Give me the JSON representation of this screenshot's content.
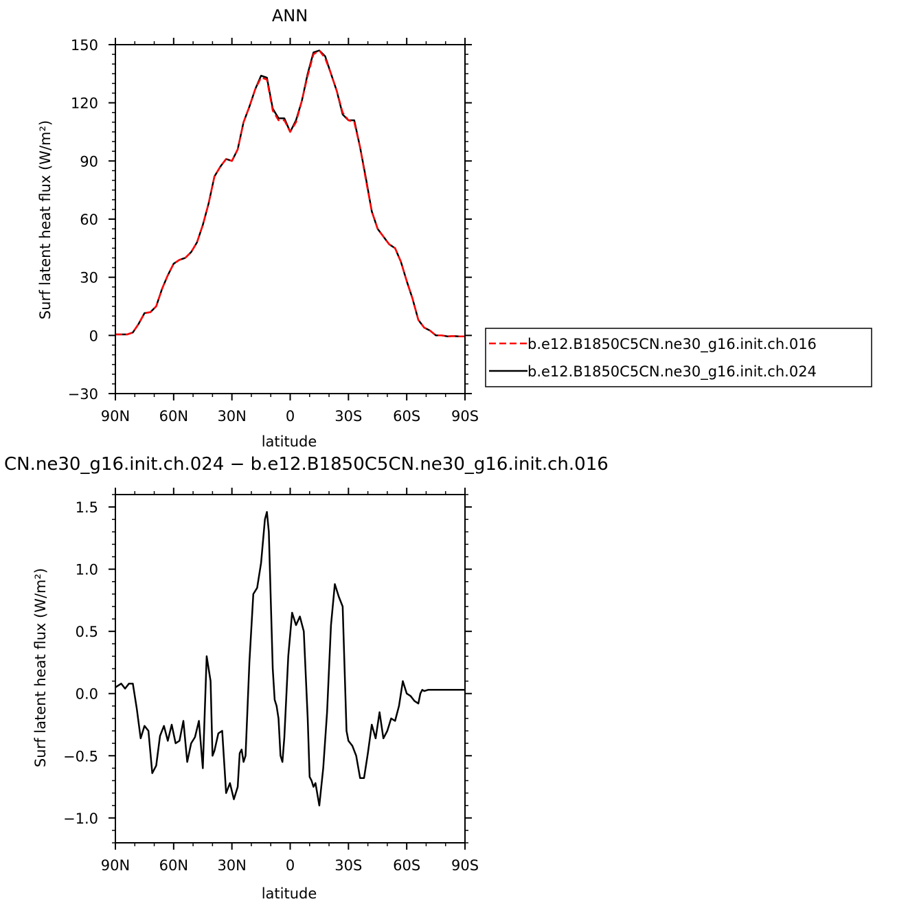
{
  "chart_data": [
    {
      "type": "line",
      "title": "ANN",
      "xlabel": "latitude",
      "ylabel": "Surf latent heat flux (W/m²)",
      "xlim": [
        90,
        -90
      ],
      "ylim": [
        -30,
        150
      ],
      "xticks": [
        90,
        60,
        30,
        0,
        -30,
        -60,
        -90
      ],
      "xticklabels": [
        "90N",
        "60N",
        "30N",
        "0",
        "30S",
        "60S",
        "90S"
      ],
      "yticks": [
        -30,
        0,
        30,
        60,
        90,
        120,
        150
      ],
      "yticklabels": [
        "−30",
        "0",
        "30",
        "60",
        "90",
        "120",
        "150"
      ],
      "legend_position": "right",
      "series": [
        {
          "name": "b.e12.B1850C5CN.ne30_g16.init.ch.016",
          "color": "#ff0000",
          "dash": "dashed",
          "x": [
            90,
            84,
            81,
            78,
            75,
            72,
            69,
            66,
            63,
            60,
            57,
            54,
            51,
            48,
            45,
            42,
            39,
            36,
            33,
            30,
            27,
            24,
            21,
            18,
            15,
            12,
            9,
            6,
            3,
            0,
            -3,
            -6,
            -9,
            -12,
            -15,
            -18,
            -21,
            -24,
            -27,
            -30,
            -33,
            -36,
            -39,
            -42,
            -45,
            -48,
            -51,
            -54,
            -57,
            -60,
            -63,
            -66,
            -69,
            -72,
            -75,
            -78,
            -81,
            -84,
            -87,
            -90
          ],
          "y": [
            0.5,
            0.5,
            1.5,
            6,
            11.5,
            12,
            15,
            24,
            31,
            37,
            39,
            40,
            43,
            48,
            57,
            68,
            82,
            87,
            91,
            90,
            96,
            110,
            118,
            127,
            133,
            132,
            116,
            111,
            111,
            105,
            110,
            121,
            134,
            145,
            147,
            143,
            135,
            126,
            115,
            111,
            110,
            97,
            80,
            64,
            55,
            51,
            47,
            45,
            38,
            28,
            19,
            8,
            4,
            2.5,
            0,
            0,
            -0.5,
            -0.3,
            -0.5,
            -0.5
          ]
        },
        {
          "name": "b.e12.B1850C5CN.ne30_g16.init.ch.024",
          "color": "#000000",
          "dash": "solid",
          "x": [
            90,
            84,
            81,
            78,
            75,
            72,
            69,
            66,
            63,
            60,
            57,
            54,
            51,
            48,
            45,
            42,
            39,
            36,
            33,
            30,
            27,
            24,
            21,
            18,
            15,
            12,
            9,
            6,
            3,
            0,
            -3,
            -6,
            -9,
            -12,
            -15,
            -18,
            -21,
            -24,
            -27,
            -30,
            -33,
            -36,
            -39,
            -42,
            -45,
            -48,
            -51,
            -54,
            -57,
            -60,
            -63,
            -66,
            -69,
            -72,
            -75,
            -78,
            -81,
            -84,
            -87,
            -90
          ],
          "y": [
            0.5,
            0.5,
            1.5,
            6,
            11.5,
            12,
            15,
            24,
            31,
            37,
            39,
            40,
            43,
            48,
            57,
            68,
            82,
            87,
            91,
            90,
            96,
            110,
            118,
            127,
            134,
            133,
            117,
            112,
            112,
            105,
            111,
            121,
            135,
            146,
            147,
            144,
            135,
            126,
            114,
            111,
            111,
            97,
            81,
            64,
            55,
            51,
            47,
            45,
            38,
            28,
            19,
            8,
            4,
            2.5,
            0,
            0,
            -0.5,
            -0.3,
            -0.5,
            -0.5
          ]
        }
      ]
    },
    {
      "type": "line",
      "title": "CN.ne30_g16.init.ch.024 − b.e12.B1850C5CN.ne30_g16.init.ch.016",
      "xlabel": "latitude",
      "ylabel": "Surf latent heat flux (W/m²)",
      "xlim": [
        90,
        -90
      ],
      "ylim": [
        -1.2,
        1.6
      ],
      "xticks": [
        90,
        60,
        30,
        0,
        -30,
        -60,
        -90
      ],
      "xticklabels": [
        "90N",
        "60N",
        "30N",
        "0",
        "30S",
        "60S",
        "90S"
      ],
      "yticks": [
        -1.0,
        -0.5,
        0.0,
        0.5,
        1.0,
        1.5
      ],
      "yticklabels": [
        "−1.0",
        "−0.5",
        "0.0",
        "0.5",
        "1.0",
        "1.5"
      ],
      "series": [
        {
          "color": "#000000",
          "x": [
            90,
            87,
            85,
            83,
            81,
            79,
            77,
            75,
            73,
            71,
            69,
            67,
            65,
            63,
            61,
            59,
            57,
            55,
            53,
            51,
            49,
            47,
            45,
            43,
            41,
            40,
            39,
            37,
            35,
            33,
            31,
            29,
            27,
            26,
            25,
            24,
            23,
            21,
            19,
            17,
            15,
            13,
            12,
            11,
            9,
            8,
            7,
            6,
            5,
            4,
            3,
            1,
            -1,
            -3,
            -5,
            -7,
            -9,
            -10,
            -11,
            -12,
            -13,
            -15,
            -17,
            -19,
            -21,
            -23,
            -25,
            -27,
            -29,
            -30,
            -32,
            -34,
            -36,
            -38,
            -40,
            -42,
            -44,
            -46,
            -48,
            -50,
            -52,
            -54,
            -56,
            -58,
            -60,
            -62,
            -64,
            -66,
            -67,
            -68,
            -69,
            -71,
            -73,
            -75,
            -77,
            -78,
            -79,
            -81,
            -83,
            -85,
            -87,
            -89,
            -90
          ],
          "y": [
            0.05,
            0.08,
            0.04,
            0.08,
            0.08,
            -0.12,
            -0.36,
            -0.26,
            -0.3,
            -0.64,
            -0.58,
            -0.34,
            -0.26,
            -0.38,
            -0.25,
            -0.4,
            -0.38,
            -0.22,
            -0.55,
            -0.4,
            -0.35,
            -0.22,
            -0.6,
            0.3,
            0.1,
            -0.5,
            -0.46,
            -0.32,
            -0.3,
            -0.8,
            -0.72,
            -0.85,
            -0.75,
            -0.48,
            -0.45,
            -0.55,
            -0.5,
            0.25,
            0.8,
            0.85,
            1.05,
            1.4,
            1.46,
            1.3,
            0.2,
            -0.05,
            -0.1,
            -0.2,
            -0.5,
            -0.55,
            -0.35,
            0.3,
            0.65,
            0.55,
            0.62,
            0.5,
            -0.2,
            -0.67,
            -0.7,
            -0.75,
            -0.72,
            -0.9,
            -0.6,
            -0.15,
            0.55,
            0.88,
            0.78,
            0.7,
            -0.3,
            -0.38,
            -0.42,
            -0.5,
            -0.68,
            -0.68,
            -0.48,
            -0.25,
            -0.36,
            -0.15,
            -0.36,
            -0.3,
            -0.2,
            -0.22,
            -0.1,
            0.1,
            0.0,
            -0.02,
            -0.06,
            -0.08,
            0.0,
            0.03,
            0.02,
            0.03,
            0.03,
            0.03,
            0.03,
            0.03,
            0.03,
            0.03,
            0.03,
            0.03,
            0.03,
            0.03,
            0.03
          ]
        }
      ]
    }
  ]
}
